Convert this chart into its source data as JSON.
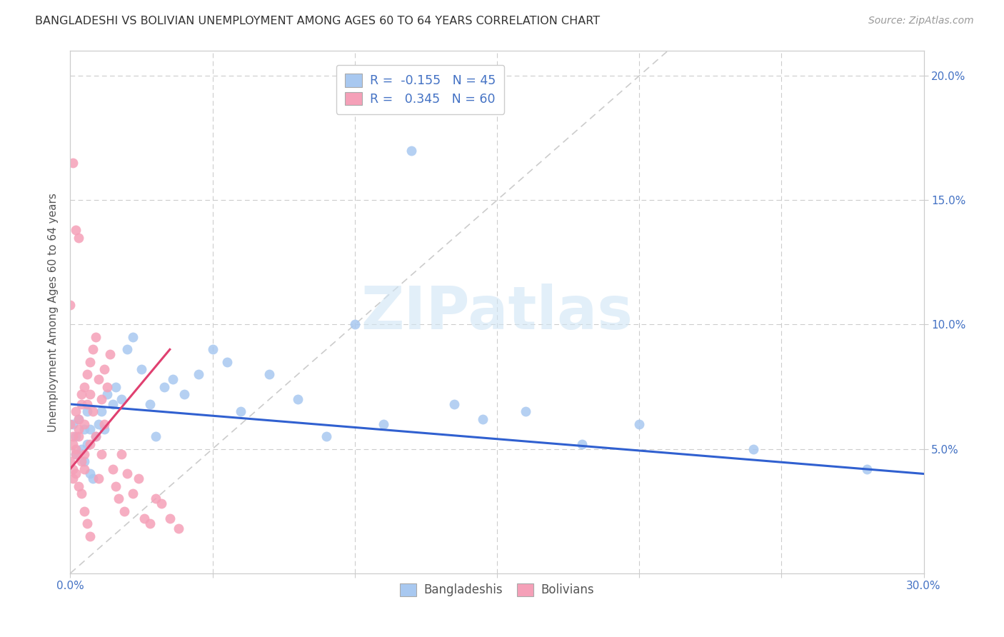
{
  "title": "BANGLADESHI VS BOLIVIAN UNEMPLOYMENT AMONG AGES 60 TO 64 YEARS CORRELATION CHART",
  "source": "Source: ZipAtlas.com",
  "ylabel": "Unemployment Among Ages 60 to 64 years",
  "watermark": "ZIPatlas",
  "blue_color": "#A8C8F0",
  "pink_color": "#F5A0B8",
  "blue_line_color": "#3060D0",
  "pink_line_color": "#E04070",
  "ref_line_color": "#CCCCCC",
  "tick_color": "#4472C4",
  "grid_color": "#CCCCCC",
  "title_color": "#333333",
  "source_color": "#999999",
  "legend_r_color": "#E04070",
  "xlim": [
    0.0,
    0.3
  ],
  "ylim": [
    0.0,
    0.21
  ],
  "bang_x": [
    0.001,
    0.002,
    0.002,
    0.003,
    0.004,
    0.005,
    0.005,
    0.006,
    0.006,
    0.007,
    0.007,
    0.008,
    0.009,
    0.01,
    0.011,
    0.012,
    0.013,
    0.015,
    0.016,
    0.018,
    0.02,
    0.022,
    0.025,
    0.028,
    0.03,
    0.033,
    0.036,
    0.04,
    0.045,
    0.05,
    0.055,
    0.06,
    0.07,
    0.08,
    0.09,
    0.1,
    0.11,
    0.12,
    0.135,
    0.145,
    0.16,
    0.18,
    0.2,
    0.24,
    0.28
  ],
  "bang_y": [
    0.06,
    0.055,
    0.048,
    0.062,
    0.05,
    0.058,
    0.045,
    0.052,
    0.065,
    0.04,
    0.058,
    0.038,
    0.055,
    0.06,
    0.065,
    0.058,
    0.072,
    0.068,
    0.075,
    0.07,
    0.09,
    0.095,
    0.082,
    0.068,
    0.055,
    0.075,
    0.078,
    0.072,
    0.08,
    0.09,
    0.085,
    0.065,
    0.08,
    0.07,
    0.055,
    0.1,
    0.06,
    0.17,
    0.068,
    0.062,
    0.065,
    0.052,
    0.06,
    0.05,
    0.042
  ],
  "boli_x": [
    0.0,
    0.0,
    0.001,
    0.001,
    0.001,
    0.001,
    0.002,
    0.002,
    0.002,
    0.002,
    0.003,
    0.003,
    0.003,
    0.003,
    0.004,
    0.004,
    0.004,
    0.005,
    0.005,
    0.005,
    0.005,
    0.006,
    0.006,
    0.007,
    0.007,
    0.007,
    0.008,
    0.008,
    0.009,
    0.009,
    0.01,
    0.01,
    0.011,
    0.011,
    0.012,
    0.012,
    0.013,
    0.014,
    0.015,
    0.016,
    0.017,
    0.018,
    0.019,
    0.02,
    0.022,
    0.024,
    0.026,
    0.028,
    0.03,
    0.032,
    0.035,
    0.038,
    0.0,
    0.001,
    0.002,
    0.003,
    0.004,
    0.005,
    0.006,
    0.007
  ],
  "boli_y": [
    0.045,
    0.06,
    0.042,
    0.055,
    0.052,
    0.038,
    0.05,
    0.048,
    0.065,
    0.04,
    0.058,
    0.055,
    0.062,
    0.035,
    0.068,
    0.072,
    0.045,
    0.075,
    0.06,
    0.048,
    0.042,
    0.08,
    0.068,
    0.085,
    0.072,
    0.052,
    0.09,
    0.065,
    0.095,
    0.055,
    0.078,
    0.038,
    0.07,
    0.048,
    0.082,
    0.06,
    0.075,
    0.088,
    0.042,
    0.035,
    0.03,
    0.048,
    0.025,
    0.04,
    0.032,
    0.038,
    0.022,
    0.02,
    0.03,
    0.028,
    0.022,
    0.018,
    0.108,
    0.165,
    0.138,
    0.135,
    0.032,
    0.025,
    0.02,
    0.015
  ],
  "blue_trend_x": [
    0.0,
    0.3
  ],
  "blue_trend_y": [
    0.068,
    0.04
  ],
  "pink_trend_x": [
    0.0,
    0.035
  ],
  "pink_trend_y": [
    0.042,
    0.09
  ]
}
